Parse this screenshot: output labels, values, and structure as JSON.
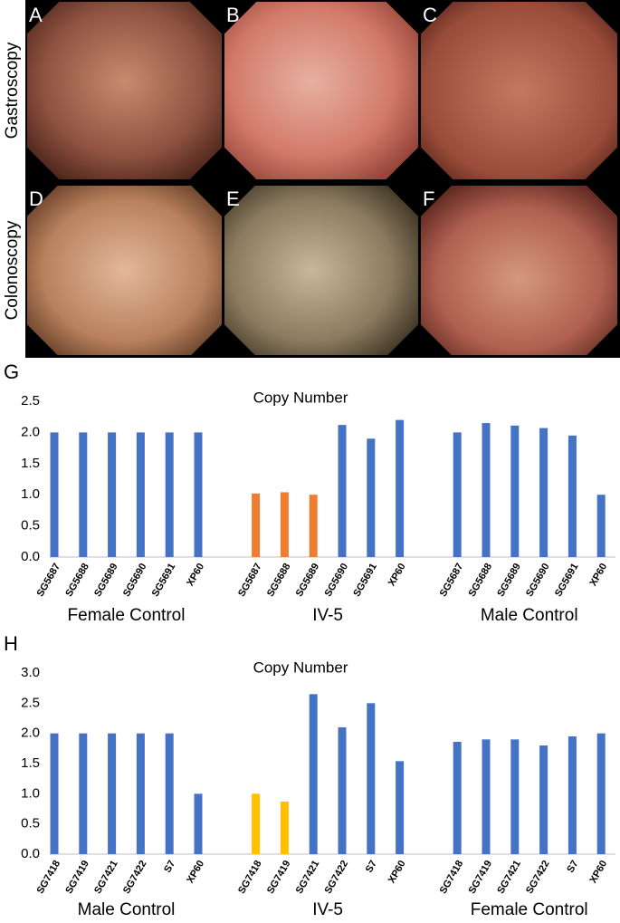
{
  "panels": {
    "row_labels": [
      "Gastroscopy",
      "Colonoscopy"
    ],
    "images": [
      "A",
      "B",
      "C",
      "D",
      "E",
      "F"
    ]
  },
  "chart_data": [
    {
      "type": "bar",
      "panel": "G",
      "title": "Copy Number",
      "ylim": [
        0,
        2.5
      ],
      "yticks": [
        {
          "value": 0,
          "label": "0.0"
        },
        {
          "value": 0.5,
          "label": "0.5"
        },
        {
          "value": 1,
          "label": "1.0"
        },
        {
          "value": 1.5,
          "label": "1.5"
        },
        {
          "value": 2,
          "label": "2.0"
        },
        {
          "value": 2.5,
          "label": "2.5"
        }
      ],
      "groups": [
        {
          "name": "Female Control",
          "categories": [
            "SG5687",
            "SG5688",
            "SG5689",
            "SG5690",
            "SG5691",
            "XP60"
          ],
          "values": [
            2.0,
            2.0,
            2.0,
            2.0,
            2.0,
            2.0
          ],
          "colors": [
            "#4472c4",
            "#4472c4",
            "#4472c4",
            "#4472c4",
            "#4472c4",
            "#4472c4"
          ]
        },
        {
          "name": "IV-5",
          "categories": [
            "SG5687",
            "SG5688",
            "SG5689",
            "SG5690",
            "SG5691",
            "XP60"
          ],
          "values": [
            1.02,
            1.04,
            1.0,
            2.12,
            1.9,
            2.2
          ],
          "colors": [
            "#ed7d31",
            "#ed7d31",
            "#ed7d31",
            "#4472c4",
            "#4472c4",
            "#4472c4"
          ]
        },
        {
          "name": "Male Control",
          "categories": [
            "SG5687",
            "SG5688",
            "SG5689",
            "SG5690",
            "SG5691",
            "XP60"
          ],
          "values": [
            2.0,
            2.15,
            2.11,
            2.07,
            1.95,
            1.0
          ],
          "colors": [
            "#4472c4",
            "#4472c4",
            "#4472c4",
            "#4472c4",
            "#4472c4",
            "#4472c4"
          ]
        }
      ]
    },
    {
      "type": "bar",
      "panel": "H",
      "title": "Copy Number",
      "ylim": [
        0,
        3
      ],
      "yticks": [
        {
          "value": 0,
          "label": "0.0"
        },
        {
          "value": 0.5,
          "label": "0.5"
        },
        {
          "value": 1,
          "label": "1.0"
        },
        {
          "value": 1.5,
          "label": "1.5"
        },
        {
          "value": 2,
          "label": "2.0"
        },
        {
          "value": 2.5,
          "label": "2.5"
        },
        {
          "value": 3,
          "label": "3.0"
        }
      ],
      "groups": [
        {
          "name": "Male Control",
          "categories": [
            "SG7418",
            "SG7419",
            "SG7421",
            "SG7422",
            "S7",
            "XP60"
          ],
          "values": [
            2.0,
            2.0,
            2.0,
            2.0,
            2.0,
            1.0
          ],
          "colors": [
            "#4472c4",
            "#4472c4",
            "#4472c4",
            "#4472c4",
            "#4472c4",
            "#4472c4"
          ]
        },
        {
          "name": "IV-5",
          "categories": [
            "SG7418",
            "SG7419",
            "SG7421",
            "SG7422",
            "S7",
            "XP60"
          ],
          "values": [
            1.0,
            0.87,
            2.65,
            2.1,
            2.5,
            1.54
          ],
          "colors": [
            "#ffc000",
            "#ffc000",
            "#4472c4",
            "#4472c4",
            "#4472c4",
            "#4472c4"
          ]
        },
        {
          "name": "Female Control",
          "categories": [
            "SG7418",
            "SG7419",
            "SG7421",
            "SG7422",
            "S7",
            "XP60"
          ],
          "values": [
            1.86,
            1.9,
            1.9,
            1.8,
            1.95,
            2.0
          ],
          "colors": [
            "#4472c4",
            "#4472c4",
            "#4472c4",
            "#4472c4",
            "#4472c4",
            "#4472c4"
          ]
        }
      ]
    }
  ]
}
